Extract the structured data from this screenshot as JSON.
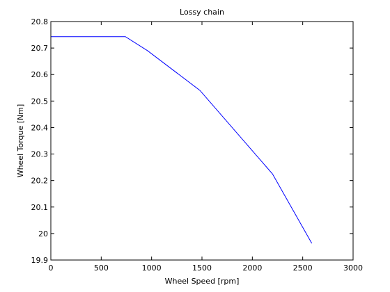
{
  "chart_data": {
    "type": "line",
    "title": "Lossy chain",
    "xlabel": "Wheel Speed [rpm]",
    "ylabel": "Wheel Torque [Nm]",
    "xlim": [
      0,
      3000
    ],
    "ylim": [
      19.9,
      20.8
    ],
    "xticks": [
      0,
      500,
      1000,
      1500,
      2000,
      2500,
      3000
    ],
    "xtick_labels": [
      "0",
      "500",
      "1000",
      "1500",
      "2000",
      "2500",
      "3000"
    ],
    "yticks": [
      19.9,
      20,
      20.1,
      20.2,
      20.3,
      20.4,
      20.5,
      20.6,
      20.7,
      20.8
    ],
    "ytick_labels": [
      "19.9",
      "20",
      "20.1",
      "20.2",
      "20.3",
      "20.4",
      "20.5",
      "20.6",
      "20.7",
      "20.8"
    ],
    "grid": false,
    "legend": "none",
    "series": [
      {
        "color": "#0000ff",
        "x": [
          0,
          740,
          960,
          1480,
          2200,
          2590
        ],
        "y": [
          20.743,
          20.743,
          20.69,
          20.54,
          20.225,
          19.963
        ]
      }
    ]
  }
}
